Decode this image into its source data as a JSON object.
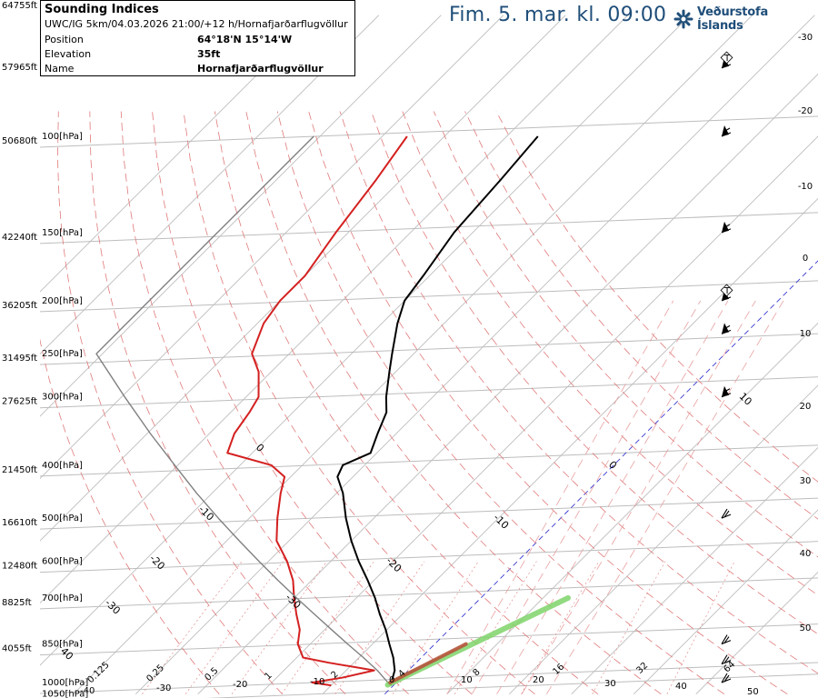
{
  "info_box": {
    "title": "Sounding Indices",
    "subtitle": "UWC/IG 5km/04.03.2026 21:00/+12 h/Hornafjarðarflugvöllur",
    "rows": [
      {
        "label": "Position",
        "value": "64°18'N 15°14'W"
      },
      {
        "label": "Elevation",
        "value": "35ft"
      },
      {
        "label": "Name",
        "value": "Hornafjarðarflugvöllur"
      }
    ]
  },
  "header": {
    "valid_time": "Fim. 5. mar. kl. 09:00",
    "org_name": "Veðurstofa Íslands"
  },
  "chart_data": {
    "type": "line",
    "diagram": "skew-T log-P",
    "y_axis": {
      "scale": "log",
      "unit": "hPa",
      "range": [
        1050,
        100
      ],
      "pressure_ticks": [
        {
          "p": 100,
          "label": "100[hPa]",
          "alt_label": "50680ft"
        },
        {
          "p": 150,
          "label": "150[hPa]",
          "alt_label": "42240ft"
        },
        {
          "p": 200,
          "label": "200[hPa]",
          "alt_label": "36205ft"
        },
        {
          "p": 250,
          "label": "250[hPa]",
          "alt_label": "31495ft"
        },
        {
          "p": 300,
          "label": "300[hPa]",
          "alt_label": "27625ft"
        },
        {
          "p": 400,
          "label": "400[hPa]",
          "alt_label": "21450ft"
        },
        {
          "p": 500,
          "label": "500[hPa]",
          "alt_label": "16610ft"
        },
        {
          "p": 600,
          "label": "600[hPa]",
          "alt_label": "12480ft"
        },
        {
          "p": 700,
          "label": "700[hPa]",
          "alt_label": "8825ft"
        },
        {
          "p": 850,
          "label": "850[hPa]",
          "alt_label": "4055ft"
        },
        {
          "p": 1000,
          "label": "1000[hPa]",
          "alt_label": ""
        },
        {
          "p": 1050,
          "label": "1050[hPa]",
          "alt_label": ""
        }
      ],
      "top_alt_labels": [
        "64755ft",
        "57965ft"
      ]
    },
    "temperature_isotherm_labels": [
      "-30",
      "-20",
      "-10",
      "0",
      "10",
      "20",
      "30"
    ],
    "right_edge_labels": [
      "-30",
      "-20",
      "-10",
      "0",
      "10",
      "20",
      "30",
      "40",
      "50"
    ],
    "left_edge_labels": [
      "40",
      "30",
      "20",
      "10",
      "0",
      "-10",
      "-20",
      "-30",
      "-40"
    ],
    "mixing_ratio_labels": [
      "0.125",
      "0.25",
      "0.5",
      "1",
      "2",
      "4",
      "8",
      "16",
      "32",
      "64"
    ],
    "series": [
      {
        "name": "Temperature",
        "color": "#000000",
        "points": [
          {
            "p": 1012,
            "t": -0.5
          },
          {
            "p": 1000,
            "t": -0.8
          },
          {
            "p": 950,
            "t": -2.2
          },
          {
            "p": 900,
            "t": -4.5
          },
          {
            "p": 850,
            "t": -7.3
          },
          {
            "p": 800,
            "t": -10.2
          },
          {
            "p": 750,
            "t": -13.6
          },
          {
            "p": 700,
            "t": -17.0
          },
          {
            "p": 650,
            "t": -21.0
          },
          {
            "p": 600,
            "t": -25.5
          },
          {
            "p": 550,
            "t": -30.0
          },
          {
            "p": 500,
            "t": -34.5
          },
          {
            "p": 450,
            "t": -39.0
          },
          {
            "p": 420,
            "t": -42.5
          },
          {
            "p": 400,
            "t": -43.5
          },
          {
            "p": 380,
            "t": -41.0
          },
          {
            "p": 350,
            "t": -43.0
          },
          {
            "p": 320,
            "t": -45.0
          },
          {
            "p": 300,
            "t": -47.5
          },
          {
            "p": 270,
            "t": -51.0
          },
          {
            "p": 250,
            "t": -53.5
          },
          {
            "p": 220,
            "t": -57.5
          },
          {
            "p": 200,
            "t": -60.0
          },
          {
            "p": 180,
            "t": -61.0
          },
          {
            "p": 150,
            "t": -63.0
          },
          {
            "p": 120,
            "t": -64.0
          },
          {
            "p": 100,
            "t": -65.0
          }
        ]
      },
      {
        "name": "Dew point",
        "color": "#d42020",
        "points": [
          {
            "p": 1012,
            "t": -10.0
          },
          {
            "p": 1000,
            "t": -13.5
          },
          {
            "p": 980,
            "t": -9.5
          },
          {
            "p": 950,
            "t": -5.5
          },
          {
            "p": 920,
            "t": -14.0
          },
          {
            "p": 900,
            "t": -19.0
          },
          {
            "p": 850,
            "t": -22.0
          },
          {
            "p": 800,
            "t": -24.0
          },
          {
            "p": 750,
            "t": -27.0
          },
          {
            "p": 700,
            "t": -30.0
          },
          {
            "p": 650,
            "t": -33.0
          },
          {
            "p": 600,
            "t": -37.0
          },
          {
            "p": 550,
            "t": -42.0
          },
          {
            "p": 500,
            "t": -45.5
          },
          {
            "p": 450,
            "t": -49.0
          },
          {
            "p": 420,
            "t": -51.0
          },
          {
            "p": 400,
            "t": -55.0
          },
          {
            "p": 380,
            "t": -64.0
          },
          {
            "p": 350,
            "t": -66.0
          },
          {
            "p": 320,
            "t": -67.0
          },
          {
            "p": 300,
            "t": -68.0
          },
          {
            "p": 270,
            "t": -72.0
          },
          {
            "p": 250,
            "t": -76.0
          },
          {
            "p": 220,
            "t": -79.0
          },
          {
            "p": 200,
            "t": -80.0
          },
          {
            "p": 180,
            "t": -80.0
          },
          {
            "p": 150,
            "t": -82.0
          },
          {
            "p": 120,
            "t": -84.0
          },
          {
            "p": 100,
            "t": -86.0
          }
        ]
      },
      {
        "name": "Parcel path",
        "color": "#808080",
        "points": [
          {
            "p": 1012,
            "t": -0.5
          },
          {
            "p": 950,
            "t": -5.0
          },
          {
            "p": 900,
            "t": -9.3
          },
          {
            "p": 850,
            "t": -14.0
          },
          {
            "p": 800,
            "t": -18.9
          },
          {
            "p": 750,
            "t": -24.1
          },
          {
            "p": 700,
            "t": -29.6
          },
          {
            "p": 650,
            "t": -35.4
          },
          {
            "p": 600,
            "t": -41.5
          },
          {
            "p": 550,
            "t": -48.0
          },
          {
            "p": 500,
            "t": -55.0
          },
          {
            "p": 450,
            "t": -62.5
          },
          {
            "p": 400,
            "t": -70.5
          },
          {
            "p": 350,
            "t": -79.5
          },
          {
            "p": 300,
            "t": -89.5
          },
          {
            "p": 250,
            "t": -101.0
          },
          {
            "p": 200,
            "t": -101.0
          },
          {
            "p": 150,
            "t": -101.0
          },
          {
            "p": 100,
            "t": -101.0
          }
        ]
      }
    ],
    "wind_barbs": [
      {
        "p": 1000,
        "symbol": "barb"
      },
      {
        "p": 925,
        "symbol": "barb"
      },
      {
        "p": 850,
        "symbol": "barb"
      },
      {
        "p": 500,
        "symbol": "barb"
      },
      {
        "p": 300,
        "symbol": "flag"
      },
      {
        "p": 230,
        "symbol": "flag"
      },
      {
        "p": 200,
        "symbol": "flag-turbulence"
      },
      {
        "p": 150,
        "symbol": "flag"
      },
      {
        "p": 100,
        "symbol": "flag"
      },
      {
        "p": 75,
        "symbol": "flag-turbulence"
      }
    ],
    "grid": true,
    "colors": {
      "isotherm": "#bdbdbd",
      "isobar": "#bdbdbd",
      "dry_adiabat": "#e07a7a",
      "moist_adiabat": "#e9a0a0",
      "mixing_ratio": "#e07a7a",
      "zero_isotherm": "#3a3ad0",
      "temperature": "#000000",
      "dewpoint": "#d42020",
      "parcel": "#808080"
    }
  }
}
